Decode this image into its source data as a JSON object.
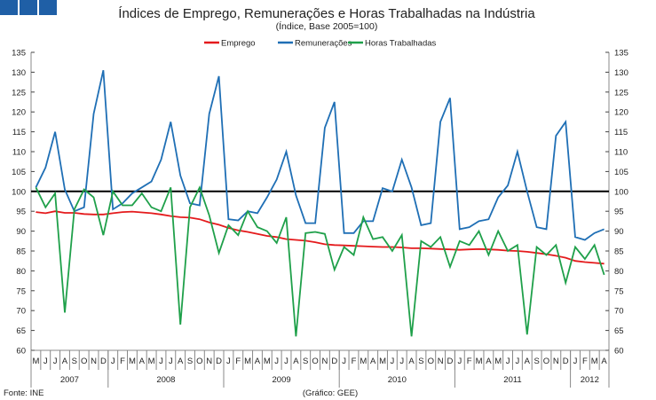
{
  "logo_color": "#1f5fa6",
  "chart_data": {
    "type": "line",
    "title": "Índices de Emprego, Remunerações e Horas Trabalhadas na Indústria",
    "subtitle": "(Índice, Base 2005=100)",
    "ylim": [
      60,
      135
    ],
    "yticks": [
      60,
      65,
      70,
      75,
      80,
      85,
      90,
      95,
      100,
      105,
      110,
      115,
      120,
      125,
      130,
      135
    ],
    "reference_line": 100,
    "months": [
      "M",
      "J",
      "J",
      "A",
      "S",
      "O",
      "N",
      "D",
      "J",
      "F",
      "M",
      "A",
      "M",
      "J",
      "J",
      "A",
      "S",
      "O",
      "N",
      "D",
      "J",
      "F",
      "M",
      "A",
      "M",
      "J",
      "J",
      "A",
      "S",
      "O",
      "N",
      "D",
      "J",
      "F",
      "M",
      "A",
      "M",
      "J",
      "J",
      "A",
      "S",
      "O",
      "N",
      "D",
      "J",
      "F",
      "M",
      "A",
      "M",
      "J",
      "J",
      "A",
      "S",
      "O",
      "N",
      "D",
      "J",
      "F",
      "M",
      "A"
    ],
    "years": [
      {
        "label": "2007",
        "months": 8
      },
      {
        "label": "2008",
        "months": 12
      },
      {
        "label": "2009",
        "months": 12
      },
      {
        "label": "2010",
        "months": 12
      },
      {
        "label": "2011",
        "months": 12
      },
      {
        "label": "2012",
        "months": 4
      }
    ],
    "legend_position": "top-center",
    "series": [
      {
        "name": "Emprego",
        "color": "#e41a1c",
        "values": [
          94.8,
          94.5,
          95,
          94.6,
          94.6,
          94.3,
          94.2,
          94.2,
          94.5,
          94.8,
          94.9,
          94.7,
          94.5,
          94.2,
          93.8,
          93.5,
          93.4,
          93,
          92.2,
          91.6,
          90.8,
          90.2,
          89.8,
          89.3,
          88.8,
          88.5,
          88,
          87.8,
          87.6,
          87.2,
          86.7,
          86.5,
          86.4,
          86.3,
          86.2,
          86.1,
          86,
          86,
          85.9,
          85.7,
          85.7,
          85.6,
          85.5,
          85.4,
          85.3,
          85.4,
          85.5,
          85.4,
          85.3,
          85.1,
          85,
          84.8,
          84.5,
          84.2,
          83.8,
          83.3,
          82.5,
          82.2,
          82,
          81.8
        ]
      },
      {
        "name": "Remunerações",
        "color": "#1f6fb5",
        "values": [
          101,
          106,
          115,
          100.5,
          95,
          96,
          119.5,
          130.5,
          95.5,
          97,
          99.5,
          101,
          102.5,
          108,
          117.5,
          104,
          97,
          96.5,
          119.5,
          129,
          93,
          92.7,
          95,
          94.5,
          98.5,
          103,
          110,
          99,
          92,
          92,
          116,
          122.5,
          89.5,
          89.5,
          92.5,
          92.5,
          100.8,
          100,
          108,
          101,
          91.5,
          92,
          117.5,
          123.5,
          90.5,
          91,
          92.5,
          93,
          98.5,
          101.5,
          110,
          100,
          91,
          90.5,
          114,
          117.5,
          88.5,
          87.8,
          89.5,
          90.5
        ]
      },
      {
        "name": "Horas Trabalhadas",
        "color": "#1fa04a",
        "values": [
          101,
          96,
          99.5,
          69.5,
          95.5,
          100.5,
          98.5,
          89,
          100,
          96.5,
          96.5,
          99.5,
          96,
          95,
          101,
          66.5,
          96,
          101,
          94,
          84.5,
          91.5,
          89,
          95,
          91,
          90,
          87,
          93.5,
          63.5,
          89.5,
          89.8,
          89.3,
          80.3,
          86,
          84,
          93.5,
          88,
          88.5,
          85,
          89,
          63.5,
          87.5,
          86,
          88.5,
          81,
          87.5,
          86.5,
          90,
          84,
          90,
          85,
          86.5,
          64,
          86,
          84,
          86.5,
          77,
          86,
          83,
          86.5,
          79
        ]
      }
    ]
  },
  "footer": {
    "source": "Fonte: INE",
    "credit": "(Gráfico: GEE)"
  }
}
